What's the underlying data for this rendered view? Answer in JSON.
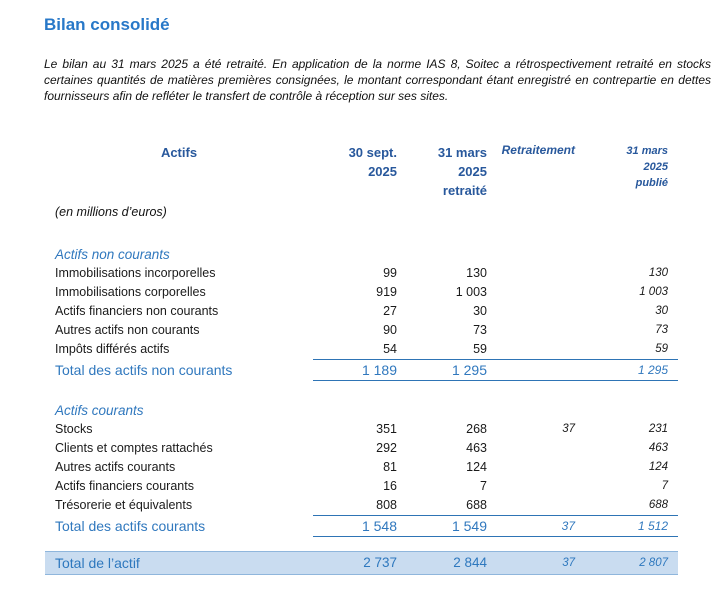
{
  "page": {
    "title": "Bilan consolidé",
    "intro": "Le bilan au 31 mars 2025 a été retraité. En application de la norme IAS 8, Soitec a rétrospectivement retraité en stocks certaines quantités de matières premières consignées, le montant correspondant étant enregistré en contrepartie en dettes fournisseurs afin de refléter le transfert de contrôle à réception sur ses sites.",
    "unit_note": "(en millions d’euros)"
  },
  "colors": {
    "title_blue": "#2878C8",
    "header_navy": "#28589C",
    "section_blue": "#3078BE",
    "total_rule_blue": "#2E74B5",
    "band_background": "#C9DCF0",
    "band_border": "#8FB6DC"
  },
  "table": {
    "header": {
      "label": "Actifs",
      "col1": "30 sept.\n2025",
      "col2": "31 mars\n2025\nretraité",
      "col3": "Retraitement",
      "col4": "31 mars\n2025\npublié"
    },
    "sections": [
      {
        "title": "Actifs non courants",
        "rows": [
          {
            "label": "Immobilisations incorporelles",
            "c1": "99",
            "c2": "130",
            "c3": "",
            "c4": "130"
          },
          {
            "label": "Immobilisations corporelles",
            "c1": "919",
            "c2": "1 003",
            "c3": "",
            "c4": "1 003"
          },
          {
            "label": "Actifs financiers non courants",
            "c1": "27",
            "c2": "30",
            "c3": "",
            "c4": "30"
          },
          {
            "label": "Autres actifs non courants",
            "c1": "90",
            "c2": "73",
            "c3": "",
            "c4": "73"
          },
          {
            "label": "Impôts différés actifs",
            "c1": "54",
            "c2": "59",
            "c3": "",
            "c4": "59"
          }
        ],
        "total": {
          "label": "Total des actifs non courants",
          "c1": "1 189",
          "c2": "1 295",
          "c3": "",
          "c4": "1 295"
        }
      },
      {
        "title": "Actifs courants",
        "rows": [
          {
            "label": "Stocks",
            "c1": "351",
            "c2": "268",
            "c3": "37",
            "c4": "231"
          },
          {
            "label": "Clients et comptes rattachés",
            "c1": "292",
            "c2": "463",
            "c3": "",
            "c4": "463"
          },
          {
            "label": "Autres actifs courants",
            "c1": "81",
            "c2": "124",
            "c3": "",
            "c4": "124"
          },
          {
            "label": "Actifs financiers courants",
            "c1": "16",
            "c2": "7",
            "c3": "",
            "c4": "7"
          },
          {
            "label": "Trésorerie et équivalents",
            "c1": "808",
            "c2": "688",
            "c3": "",
            "c4": "688"
          }
        ],
        "total": {
          "label": "Total des actifs courants",
          "c1": "1 548",
          "c2": "1 549",
          "c3": "37",
          "c4": "1 512"
        }
      }
    ],
    "grand_total": {
      "label": "Total de l’actif",
      "c1": "2 737",
      "c2": "2 844",
      "c3": "37",
      "c4": "2 807"
    }
  }
}
